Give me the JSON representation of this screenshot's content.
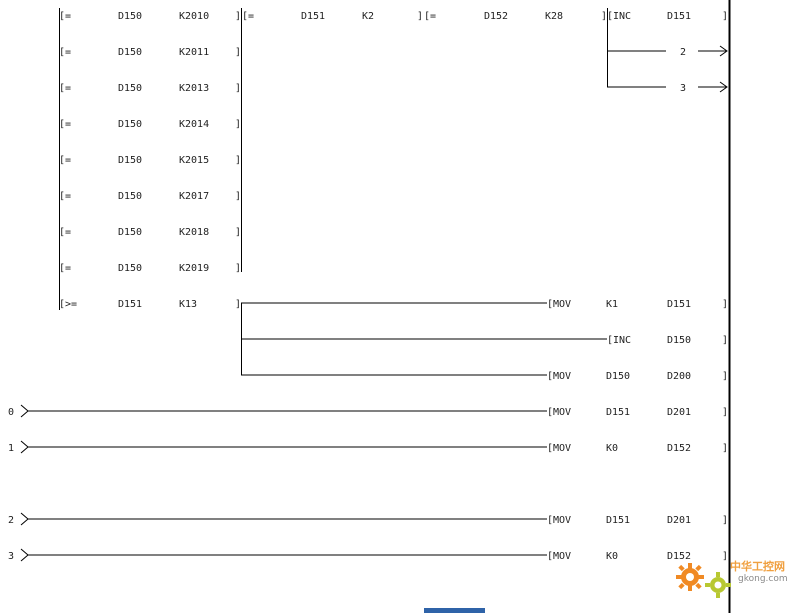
{
  "rungs": {
    "compare_rows": [
      {
        "op": "[=",
        "a": "D150",
        "b": "K2010"
      },
      {
        "op": "[=",
        "a": "D150",
        "b": "K2011"
      },
      {
        "op": "[=",
        "a": "D150",
        "b": "K2013"
      },
      {
        "op": "[=",
        "a": "D150",
        "b": "K2014"
      },
      {
        "op": "[=",
        "a": "D150",
        "b": "K2015"
      },
      {
        "op": "[=",
        "a": "D150",
        "b": "K2017"
      },
      {
        "op": "[=",
        "a": "D150",
        "b": "K2018"
      },
      {
        "op": "[=",
        "a": "D150",
        "b": "K2019"
      },
      {
        "op": "[>=",
        "a": "D151",
        "b": "K13"
      }
    ],
    "series_compares": [
      {
        "op": "[=",
        "a": "D151",
        "b": "K2"
      },
      {
        "op": "[=",
        "a": "D152",
        "b": "K28"
      }
    ],
    "inc_top": {
      "op": "[INC",
      "arg": "D151"
    },
    "jumps": [
      "2",
      "3"
    ],
    "outputs": [
      {
        "op": "[MOV",
        "a": "K1",
        "b": "D151"
      },
      {
        "op": "[INC",
        "a": "",
        "b": "D150"
      },
      {
        "op": "[MOV",
        "a": "D150",
        "b": "D200"
      },
      {
        "op": "[MOV",
        "a": "D151",
        "b": "D201"
      },
      {
        "op": "[MOV",
        "a": "K0",
        "b": "D152"
      },
      {
        "op": "[MOV",
        "a": "D151",
        "b": "D201"
      },
      {
        "op": "[MOV",
        "a": "K0",
        "b": "D152"
      }
    ],
    "pointers": [
      "0",
      "1",
      "2",
      "3"
    ]
  },
  "watermark": {
    "cn": "中华工控网",
    "url": "gkong.com"
  }
}
